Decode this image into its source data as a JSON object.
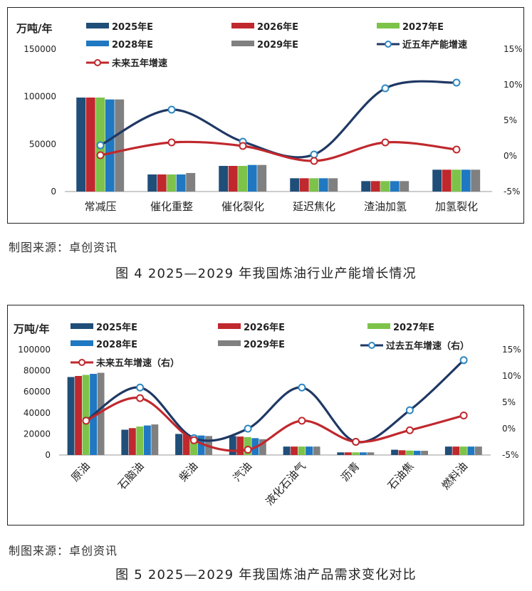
{
  "figures": [
    {
      "source_note": "制图来源：卓创资讯",
      "caption": "图 4  2025—2029 年我国炼油行业产能增长情况"
    },
    {
      "source_note": "制图来源：卓创资讯",
      "caption": "图 5  2025—2029 年我国炼油产品需求变化对比"
    }
  ],
  "chart_data": [
    {
      "type": "bar",
      "unit_label": "万吨/年",
      "categories": [
        "常减压",
        "催化重整",
        "催化裂化",
        "延迟焦化",
        "渣油加氢",
        "加氢裂化"
      ],
      "ylim": [
        0,
        150000
      ],
      "yticks": [
        "0",
        "50000",
        "100000",
        "150000"
      ],
      "y2lim": [
        -5,
        15
      ],
      "y2ticks": [
        "-5%",
        "0%",
        "5%",
        "10%",
        "15%"
      ],
      "series": [
        {
          "name": "2025年E",
          "kind": "bar",
          "color": "#1f4e79",
          "values": [
            99000,
            18000,
            27000,
            14000,
            11000,
            23000
          ]
        },
        {
          "name": "2026年E",
          "kind": "bar",
          "color": "#c0282d",
          "values": [
            99000,
            18000,
            27000,
            14000,
            11000,
            23000
          ]
        },
        {
          "name": "2027年E",
          "kind": "bar",
          "color": "#7dc34a",
          "values": [
            99000,
            18000,
            27000,
            14000,
            11000,
            23000
          ]
        },
        {
          "name": "2028年E",
          "kind": "bar",
          "color": "#1f78c1",
          "values": [
            97000,
            18000,
            28000,
            14000,
            11000,
            23000
          ]
        },
        {
          "name": "2029年E",
          "kind": "bar",
          "color": "#808080",
          "values": [
            97000,
            19500,
            28000,
            14000,
            11000,
            23000
          ]
        },
        {
          "name": "近五年产能增速",
          "kind": "line",
          "color": "#1f3864",
          "values": [
            1.5,
            6.5,
            2.0,
            0.2,
            9.5,
            10.3
          ]
        },
        {
          "name": "未来五年增速",
          "kind": "line",
          "color": "#c0282d",
          "values": [
            0.1,
            1.9,
            1.4,
            -0.7,
            1.9,
            0.9
          ]
        }
      ],
      "grid": false
    },
    {
      "type": "bar",
      "unit_label": "万吨/年",
      "categories": [
        "原油",
        "石脑油",
        "柴油",
        "汽油",
        "液化石油气",
        "沥青",
        "石油焦",
        "燃料油"
      ],
      "ylim": [
        0,
        100000
      ],
      "yticks": [
        "0",
        "20000",
        "40000",
        "60000",
        "80000",
        "100000"
      ],
      "y2lim": [
        -5,
        15
      ],
      "y2ticks": [
        "-5%",
        "0%",
        "5%",
        "10%",
        "15%"
      ],
      "series": [
        {
          "name": "2025年E",
          "kind": "bar",
          "color": "#1f4e79",
          "values": [
            74000,
            24000,
            20000,
            18000,
            8000,
            2500,
            5000,
            8000
          ]
        },
        {
          "name": "2026年E",
          "kind": "bar",
          "color": "#c0282d",
          "values": [
            75000,
            25500,
            19500,
            17500,
            8000,
            2500,
            4500,
            8000
          ]
        },
        {
          "name": "2027年E",
          "kind": "bar",
          "color": "#7dc34a",
          "values": [
            76000,
            27000,
            19000,
            17000,
            8000,
            2500,
            4200,
            8000
          ]
        },
        {
          "name": "2028年E",
          "kind": "bar",
          "color": "#1f78c1",
          "values": [
            77000,
            28000,
            18500,
            16000,
            8000,
            2500,
            4000,
            8000
          ]
        },
        {
          "name": "2029年E",
          "kind": "bar",
          "color": "#808080",
          "values": [
            78000,
            29000,
            18000,
            15000,
            8000,
            2500,
            4000,
            8000
          ]
        },
        {
          "name": "过去五年增速（右）",
          "kind": "line",
          "color": "#1f3864",
          "values": [
            1.5,
            7.8,
            -1.8,
            0.0,
            7.8,
            -2.5,
            3.5,
            13.0
          ]
        },
        {
          "name": "未来五年增速（右）",
          "kind": "line",
          "color": "#c0282d",
          "values": [
            1.5,
            5.8,
            -2.2,
            -4.0,
            1.5,
            -2.5,
            -0.3,
            2.5
          ]
        }
      ],
      "grid": false
    }
  ]
}
